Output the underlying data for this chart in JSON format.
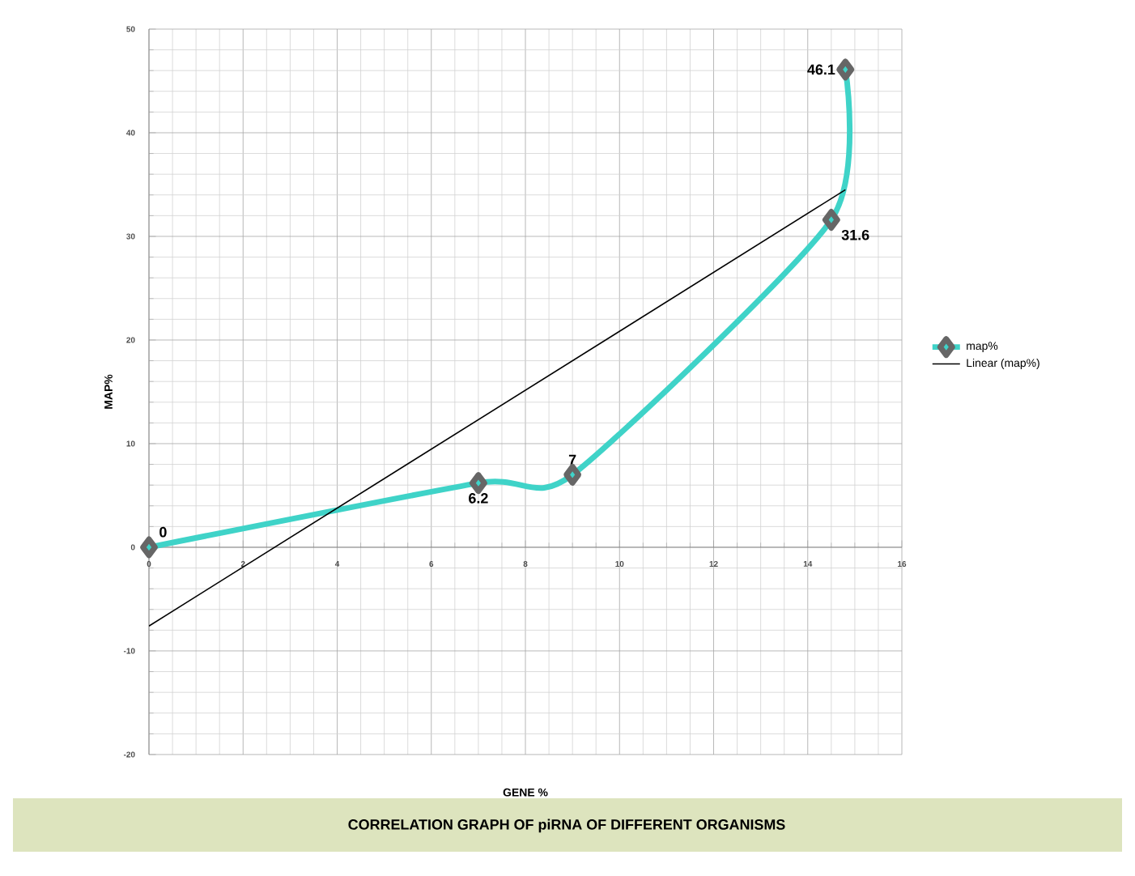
{
  "chart_data": {
    "type": "line",
    "title": "CORRELATION GRAPH OF piRNA OF DIFFERENT ORGANISMS",
    "xlabel": "GENE %",
    "ylabel": "MAP%",
    "xlim": [
      0,
      16
    ],
    "ylim": [
      -20,
      50
    ],
    "xticks": [
      0,
      2,
      4,
      6,
      8,
      10,
      12,
      14,
      16
    ],
    "yticks": [
      -20,
      -10,
      0,
      10,
      20,
      30,
      40,
      50
    ],
    "grid": true,
    "legend": "right",
    "series": [
      {
        "name": "map%",
        "color": "#3fd3c8",
        "x": [
          0,
          7,
          9,
          14.5,
          14.8
        ],
        "values": [
          0,
          6.2,
          7,
          31.6,
          46.1
        ],
        "value_labels": [
          "0",
          "6.2",
          "7",
          "31.6",
          "46.1"
        ],
        "marker": "diamond"
      },
      {
        "name": "Linear (map%)",
        "color": "#000000",
        "type": "line",
        "x": [
          0,
          14.8
        ],
        "values": [
          -7.6,
          34.5
        ],
        "marker": "none"
      }
    ]
  }
}
